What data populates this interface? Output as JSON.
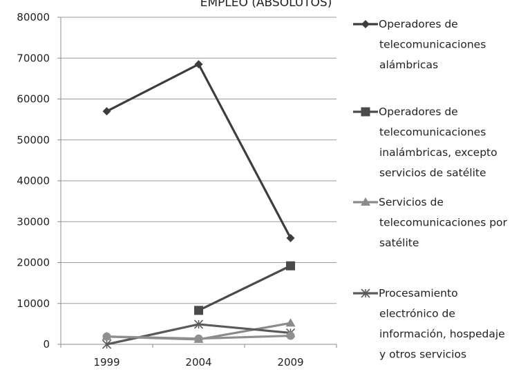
{
  "chart_data": {
    "type": "line",
    "title": "EMPLEO (ABSOLUTOS)",
    "x": [
      "1999",
      "2004",
      "2009"
    ],
    "y_ticks": [
      "0",
      "10000",
      "20000",
      "30000",
      "40000",
      "50000",
      "60000",
      "70000",
      "80000"
    ],
    "ylim": [
      0,
      80000
    ],
    "grid": true,
    "legend_position": "right",
    "series": [
      {
        "name": "Operadores de telecomunicaciones alámbricas",
        "legend_lines": [
          "Operadores de",
          "telecomunicaciones",
          "alámbricas"
        ],
        "marker": "diamond",
        "color": "#3d3d3d",
        "values": [
          57000,
          68500,
          26000
        ]
      },
      {
        "name": "Operadores de telecomunicaciones inalámbricas, excepto servicios de satélite",
        "legend_lines": [
          "Operadores de",
          "telecomunicaciones",
          "inalámbricas, excepto",
          "servicios de satélite"
        ],
        "marker": "square",
        "color": "#4a4a4a",
        "values": [
          null,
          8300,
          19200
        ]
      },
      {
        "name": "Servicios de telecomunicaciones por satélite",
        "legend_lines": [
          "Servicios de",
          "telecomunicaciones por",
          "satélite"
        ],
        "marker": "triangle",
        "color": "#8a8a8a",
        "values": [
          1900,
          1200,
          5200
        ]
      },
      {
        "name": "Procesamiento electrónico de información, hospedaje y otros servicios",
        "legend_lines": [
          "Procesamiento",
          "electrónico de",
          "información, hospedaje",
          "y otros servicios"
        ],
        "marker": "asterisk",
        "color": "#5a5a5a",
        "values": [
          0,
          4900,
          2800
        ]
      },
      {
        "name": "",
        "legend_lines": [],
        "marker": "circle",
        "color": "#8f8f8f",
        "values": [
          1900,
          1400,
          2100
        ]
      }
    ]
  }
}
